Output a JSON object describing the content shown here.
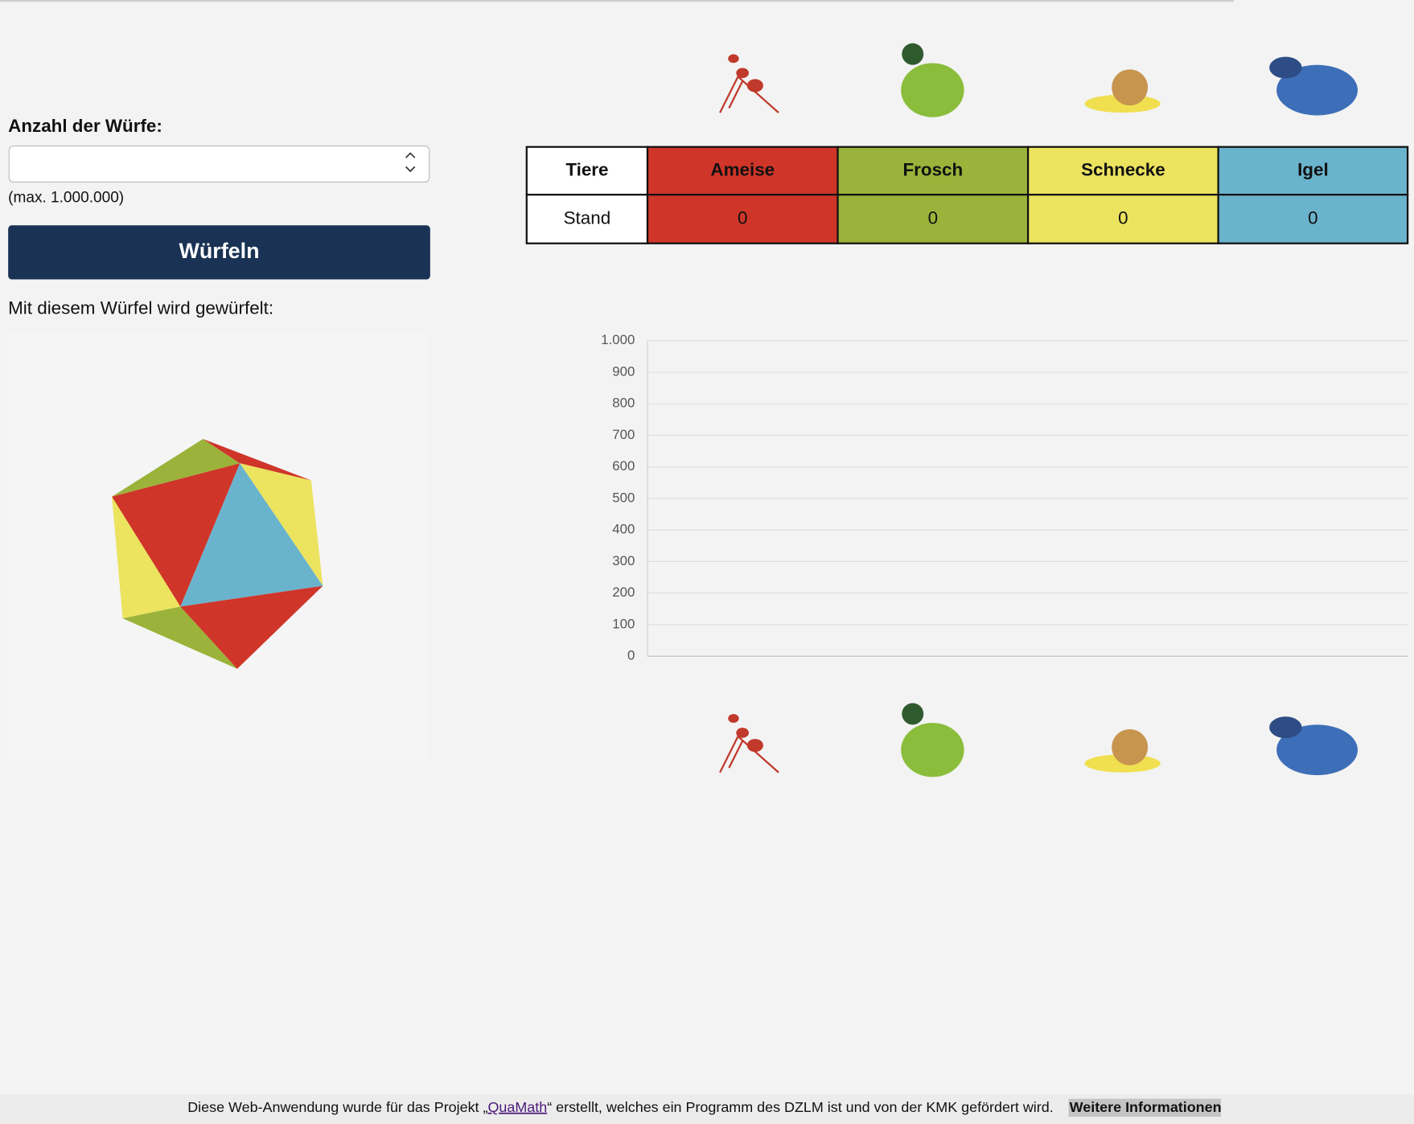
{
  "form": {
    "label": "Anzahl der Würfe:",
    "hint": "(max. 1.000.000)",
    "button": "Würfeln"
  },
  "die_caption": "Mit diesem Würfel wird gewürfelt:",
  "table": {
    "header": [
      "Tiere",
      "Ameise",
      "Frosch",
      "Schnecke",
      "Igel"
    ],
    "rows": [
      [
        "Stand",
        0,
        0,
        0,
        0
      ]
    ],
    "colors": [
      "#ffffff",
      "#cf3529",
      "#9bb33a",
      "#ece35f",
      "#6ab3cc"
    ]
  },
  "chart_data": {
    "type": "bar",
    "categories": [
      null,
      null,
      null,
      null
    ],
    "values": [
      0,
      0,
      0,
      0
    ],
    "colors": [
      "#cf3529",
      "#9bb33a",
      "#ece35f",
      "#6ab3cc"
    ],
    "ylim": [
      0,
      1000
    ],
    "yticks": [
      0,
      100,
      200,
      300,
      400,
      500,
      600,
      700,
      800,
      900,
      {
        "value": 1000,
        "label": "1.000"
      }
    ],
    "grid": true
  },
  "footer": {
    "text_before": "Diese Web-Anwendung wurde für das Projekt „",
    "link": "QuaMath",
    "text_after": "“ erstellt, welches ein Programm des DZLM ist und von der KMK gefördert wird.",
    "more": "Weitere Informationen"
  }
}
